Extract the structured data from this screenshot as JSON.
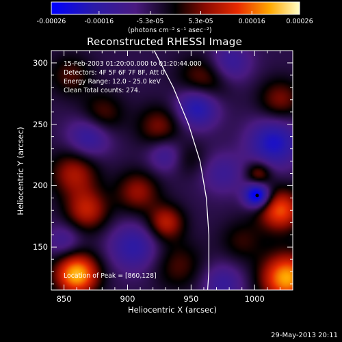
{
  "chart_data": {
    "type": "heatmap",
    "title": "Reconstructed RHESSI Image",
    "xlabel": "Heliocentric X (arcsec)",
    "ylabel": "Heliocentric Y (arcsec)",
    "xlim": [
      840,
      1030
    ],
    "ylim": [
      115,
      310
    ],
    "x_ticks": [
      850,
      900,
      950,
      1000
    ],
    "y_ticks": [
      150,
      200,
      250,
      300
    ],
    "colorbar": {
      "min": -0.00026,
      "max": 0.00026,
      "tick_values": [
        -0.00026,
        -0.00016,
        -5.3e-05,
        5.3e-05,
        0.00016,
        0.00026
      ],
      "tick_labels": [
        "-0.00026",
        "-0.00016",
        "-5.3e-05",
        "5.3e-05",
        "0.00016",
        "0.00026"
      ],
      "units_label": "(photons cm⁻² s⁻¹ asec⁻²)"
    },
    "annotations": {
      "time_range": "15-Feb-2003 01:20:00.000 to 01:20:44.000",
      "detectors": "Detectors: 4F 5F 6F 7F 8F, Att 0",
      "energy_range": "Energy Range: 12.0 - 25.0 keV",
      "clean": "Clean     Total counts: 274.",
      "peak_location": "Location of Peak = [860,128]"
    },
    "peak": [
      860,
      128
    ],
    "blobs": [
      {
        "x": 860,
        "y": 128,
        "v": 1.0,
        "s": 12
      },
      {
        "x": 1025,
        "y": 125,
        "v": 0.95,
        "s": 14
      },
      {
        "x": 1020,
        "y": 180,
        "v": 0.75,
        "s": 12
      },
      {
        "x": 868,
        "y": 180,
        "v": 0.55,
        "s": 12
      },
      {
        "x": 858,
        "y": 210,
        "v": 0.5,
        "s": 13
      },
      {
        "x": 908,
        "y": 195,
        "v": 0.45,
        "s": 12
      },
      {
        "x": 930,
        "y": 170,
        "v": 0.55,
        "s": 10
      },
      {
        "x": 925,
        "y": 248,
        "v": 0.4,
        "s": 12
      },
      {
        "x": 880,
        "y": 258,
        "v": 0.35,
        "s": 12
      },
      {
        "x": 960,
        "y": 285,
        "v": 0.45,
        "s": 14
      },
      {
        "x": 1020,
        "y": 270,
        "v": 0.4,
        "s": 12
      },
      {
        "x": 1003,
        "y": 210,
        "v": 0.45,
        "s": 7
      },
      {
        "x": 948,
        "y": 222,
        "v": 0.2,
        "s": 10
      },
      {
        "x": 940,
        "y": 135,
        "v": 0.3,
        "s": 14
      },
      {
        "x": 990,
        "y": 155,
        "v": 0.25,
        "s": 12
      },
      {
        "x": 855,
        "y": 290,
        "v": 0.3,
        "s": 12
      },
      {
        "x": 1002,
        "y": 192,
        "v": -0.95,
        "s": 7
      },
      {
        "x": 955,
        "y": 265,
        "v": -0.65,
        "s": 12
      },
      {
        "x": 1015,
        "y": 235,
        "v": -0.6,
        "s": 14
      },
      {
        "x": 870,
        "y": 240,
        "v": -0.45,
        "s": 12
      },
      {
        "x": 905,
        "y": 150,
        "v": -0.45,
        "s": 14
      },
      {
        "x": 980,
        "y": 300,
        "v": -0.4,
        "s": 12
      },
      {
        "x": 930,
        "y": 225,
        "v": -0.35,
        "s": 10
      },
      {
        "x": 975,
        "y": 210,
        "v": -0.3,
        "s": 12
      },
      {
        "x": 850,
        "y": 155,
        "v": -0.3,
        "s": 10
      },
      {
        "x": 975,
        "y": 120,
        "v": -0.35,
        "s": 12
      }
    ],
    "limb_curve": [
      [
        920,
        312
      ],
      [
        936,
        280
      ],
      [
        948,
        250
      ],
      [
        957,
        220
      ],
      [
        962,
        190
      ],
      [
        964,
        160
      ],
      [
        964,
        130
      ],
      [
        963,
        115
      ]
    ]
  },
  "footer": {
    "date": "29-May-2013 20:11"
  }
}
